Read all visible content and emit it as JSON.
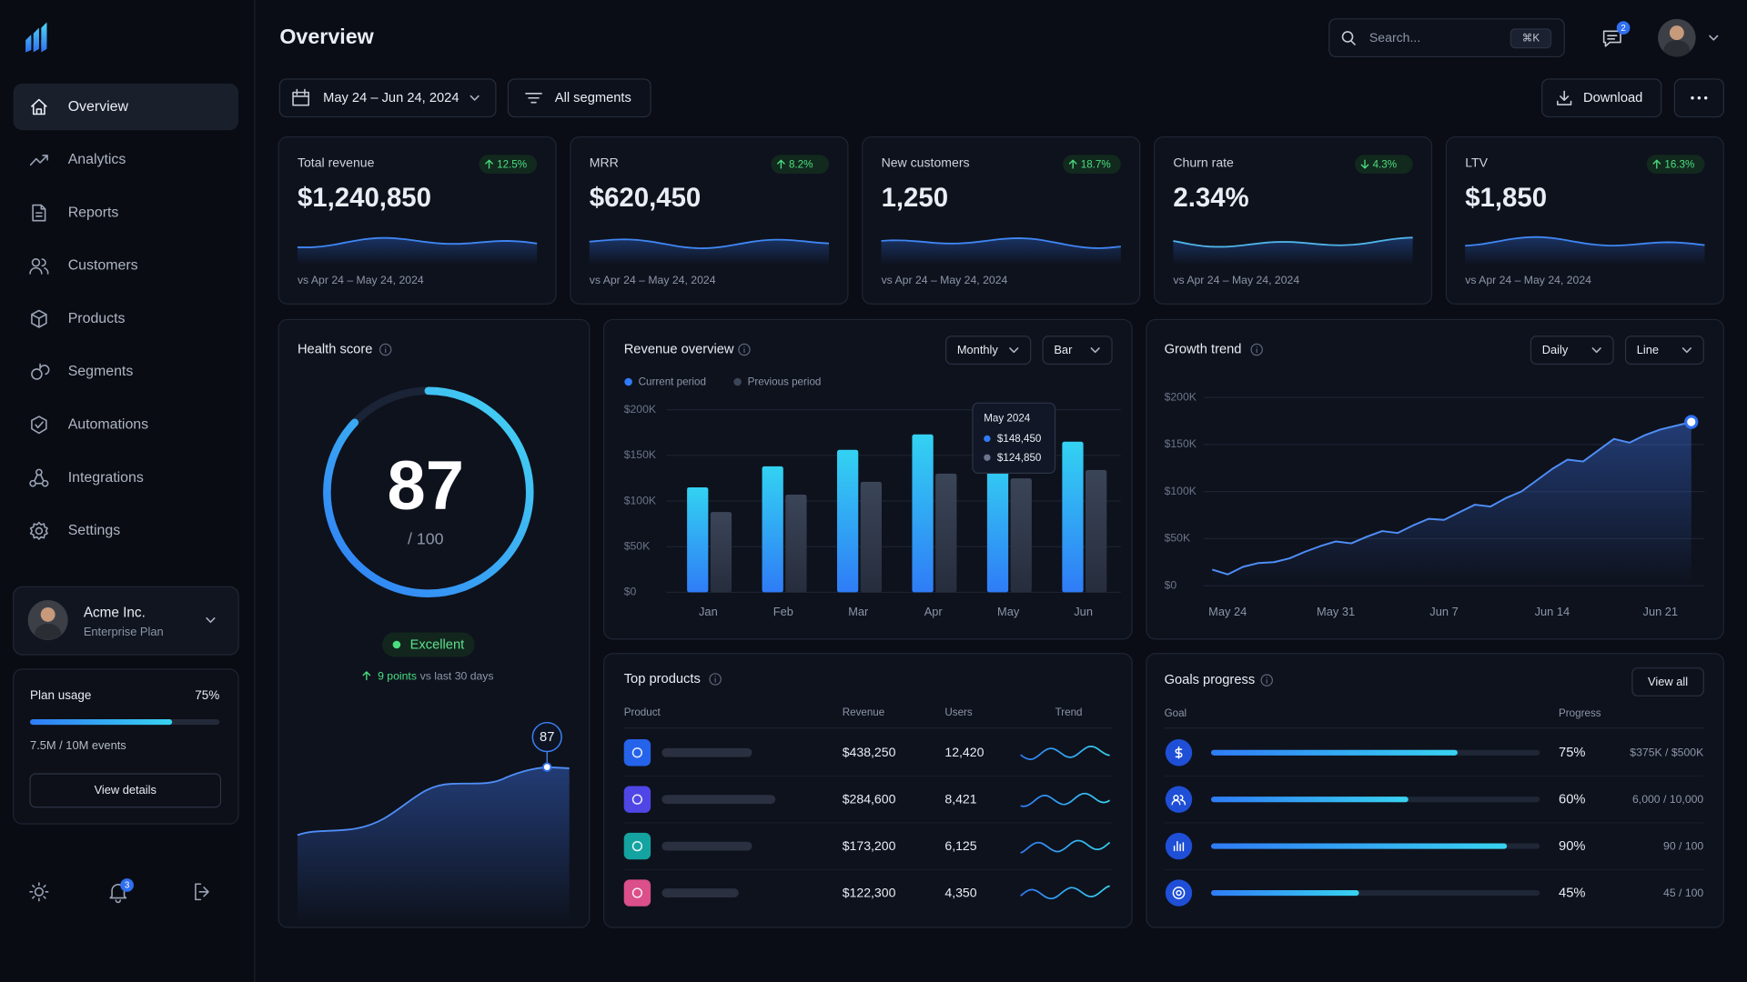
{
  "sidebar": {
    "nav": [
      "Overview",
      "Analytics",
      "Reports",
      "Customers",
      "Products",
      "Segments",
      "Automations",
      "Integrations",
      "Settings"
    ],
    "active_nav": "Overview",
    "account": {
      "name": "Acme Inc.",
      "plan": "Enterprise Plan"
    },
    "usage": {
      "title": "Plan usage",
      "percent": {
        "value": 75,
        "label": "75%"
      },
      "detail": "7.5M / 10M events",
      "button": "View details"
    },
    "notifications": "3"
  },
  "header": {
    "title": "Overview",
    "search": "Search...",
    "shortcut": "⌘K",
    "messages": "2",
    "date_range": "May 24 – Jun 24, 2024",
    "segments": "All segments",
    "download": "Download"
  },
  "kpis": [
    {
      "label": "Total revenue",
      "value": "$1,240,850",
      "change": "12.5%",
      "direction": "up",
      "comparison": "vs Apr 24 – May 24, 2024"
    },
    {
      "label": "MRR",
      "value": "$620,450",
      "change": "8.2%",
      "direction": "up",
      "comparison": "vs Apr 24 – May 24, 2024"
    },
    {
      "label": "New customers",
      "value": "1,250",
      "change": "18.7%",
      "direction": "up",
      "comparison": "vs Apr 24 – May 24, 2024"
    },
    {
      "label": "Churn rate",
      "value": "2.34%",
      "change": "4.3%",
      "direction": "down",
      "comparison": "vs Apr 24 – May 24, 2024"
    },
    {
      "label": "LTV",
      "value": "$1,850",
      "change": "16.3%",
      "direction": "up",
      "comparison": "vs Apr 24 – May 24, 2024"
    }
  ],
  "health": {
    "title": "Health score",
    "score": 87,
    "max": {
      "value": 100,
      "label": "/ 100"
    },
    "status": "Excellent",
    "change": "9 points",
    "change_note": "vs last 30 days"
  },
  "chart_data": [
    {
      "type": "bar",
      "title": "Revenue overview",
      "controls": [
        "Monthly",
        "Bar"
      ],
      "categories": [
        "Jan",
        "Feb",
        "Mar",
        "Apr",
        "May",
        "Jun"
      ],
      "series": [
        {
          "name": "Current period",
          "color": "#2f7cf6",
          "values": [
            115000,
            138000,
            156000,
            173000,
            148450,
            165000
          ],
          "value_labels": [
            null,
            null,
            null,
            null,
            "$148,450",
            null
          ]
        },
        {
          "name": "Previous period",
          "color": "#3b4558",
          "values": [
            88000,
            107000,
            121000,
            130000,
            124850,
            134000
          ],
          "value_labels": [
            null,
            null,
            null,
            null,
            "$124,850",
            null
          ]
        }
      ],
      "tooltip": "May 2024",
      "ylim": [
        0,
        200000
      ],
      "yticks": [
        {
          "value": 0,
          "label": "$0"
        },
        {
          "value": 50000,
          "label": "$50K"
        },
        {
          "value": 100000,
          "label": "$100K"
        },
        {
          "value": 150000,
          "label": "$150K"
        },
        {
          "value": 200000,
          "label": "$200K"
        }
      ],
      "grid": true
    },
    {
      "type": "line",
      "title": "Growth trend",
      "controls": [
        "Daily",
        "Line"
      ],
      "x": [
        "May 23",
        "May 24",
        "May 25",
        "May 26",
        "May 27",
        "May 28",
        "May 29",
        "May 30",
        "May 31",
        "Jun 1",
        "Jun 2",
        "Jun 3",
        "Jun 4",
        "Jun 5",
        "Jun 6",
        "Jun 7",
        "Jun 8",
        "Jun 9",
        "Jun 10",
        "Jun 11",
        "Jun 12",
        "Jun 13",
        "Jun 14",
        "Jun 15",
        "Jun 16",
        "Jun 17",
        "Jun 18",
        "Jun 19",
        "Jun 20",
        "Jun 21",
        "Jun 22",
        "Jun 23"
      ],
      "xticks": [
        "May 24",
        "May 31",
        "Jun 7",
        "Jun 14",
        "Jun 21"
      ],
      "series": [
        {
          "color": "#4f8ef7",
          "values": [
            17000,
            12000,
            20000,
            24000,
            25000,
            29000,
            36000,
            42000,
            47000,
            45000,
            52000,
            58000,
            56000,
            64000,
            71000,
            70000,
            78000,
            86000,
            84000,
            93000,
            100000,
            112000,
            124000,
            134000,
            132000,
            144000,
            156000,
            152000,
            160000,
            166000,
            170000,
            174000
          ]
        }
      ],
      "ylim": [
        0,
        200000
      ],
      "yticks": [
        {
          "value": 0,
          "label": "$0"
        },
        {
          "value": 50000,
          "label": "$50K"
        },
        {
          "value": 100000,
          "label": "$100K"
        },
        {
          "value": 150000,
          "label": "$150K"
        },
        {
          "value": 200000,
          "label": "$200K"
        }
      ],
      "grid": true
    }
  ],
  "top_products": {
    "title": "Top products",
    "columns": [
      "Product",
      "Revenue",
      "Users",
      "Trend"
    ],
    "rows": [
      {
        "revenue": "$438,250",
        "users": "12,420",
        "icon_color": "#2563eb"
      },
      {
        "revenue": "$284,600",
        "users": "8,421",
        "icon_color": "#4f46e5"
      },
      {
        "revenue": "$173,200",
        "users": "6,125",
        "icon_color": "#14a3a0"
      },
      {
        "revenue": "$122,300",
        "users": "4,350",
        "icon_color": "#db4f8a"
      }
    ]
  },
  "goals": {
    "title": "Goals progress",
    "button": "View all",
    "columns": [
      "Goal",
      "Progress"
    ],
    "rows": [
      {
        "progress": {
          "value": 75,
          "label": "75%"
        },
        "detail": "$375K / $500K"
      },
      {
        "progress": {
          "value": 60,
          "label": "60%"
        },
        "detail": "6,000 / 10,000"
      },
      {
        "progress": {
          "value": 90,
          "label": "90%"
        },
        "detail": "90 / 100"
      },
      {
        "progress": {
          "value": 45,
          "label": "45%"
        },
        "detail": "45 / 100"
      }
    ]
  }
}
